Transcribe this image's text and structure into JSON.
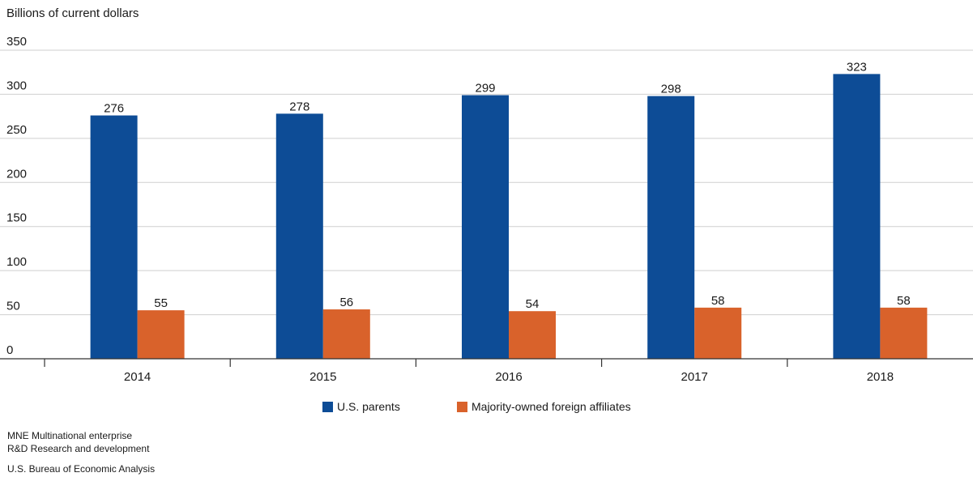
{
  "chart_data": {
    "type": "bar",
    "ylabel": "Billions of current dollars",
    "categories": [
      "2014",
      "2015",
      "2016",
      "2017",
      "2018"
    ],
    "series": [
      {
        "name": "U.S. parents",
        "values": [
          276,
          278,
          299,
          298,
          323
        ],
        "color": "#0d4c96"
      },
      {
        "name": "Majority-owned foreign affiliates",
        "values": [
          55,
          56,
          54,
          58,
          58
        ],
        "color": "#d9622b"
      }
    ],
    "ylim": [
      0,
      350
    ],
    "yticks": [
      0,
      50,
      100,
      150,
      200,
      250,
      300,
      350
    ],
    "grid": true,
    "legend_position": "bottom"
  },
  "notes": [
    "MNE  Multinational enterprise",
    "R&D  Research and development"
  ],
  "source": "U.S. Bureau of Economic Analysis"
}
